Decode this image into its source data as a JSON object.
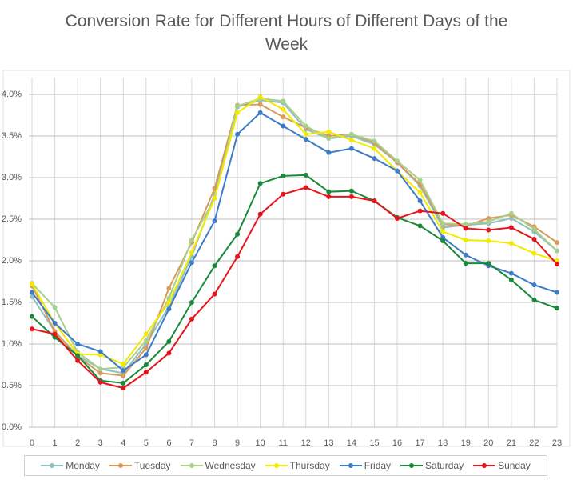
{
  "chart_data": {
    "type": "line",
    "title": "Conversion Rate for Different Hours of Different Days of the Week",
    "categories": [
      "0",
      "1",
      "2",
      "3",
      "4",
      "5",
      "6",
      "7",
      "8",
      "9",
      "10",
      "11",
      "12",
      "13",
      "14",
      "15",
      "16",
      "17",
      "18",
      "19",
      "20",
      "21",
      "22",
      "23"
    ],
    "ylim": [
      0,
      4.2
    ],
    "yticks": [
      {
        "value": 0,
        "label": "0.0%"
      },
      {
        "value": 0.5,
        "label": "0.5%"
      },
      {
        "value": 1,
        "label": "1.0%"
      },
      {
        "value": 1.5,
        "label": "1.5%"
      },
      {
        "value": 2,
        "label": "2.0%"
      },
      {
        "value": 2.5,
        "label": "2.5%"
      },
      {
        "value": 3,
        "label": "3.0%"
      },
      {
        "value": 3.5,
        "label": "3.5%"
      },
      {
        "value": 4,
        "label": "4.0%"
      }
    ],
    "grid": true,
    "legend": "bottom",
    "series": [
      {
        "name": "Monday",
        "color": "#8fbfc0",
        "values": [
          1.57,
          1.15,
          0.86,
          0.7,
          0.65,
          1.0,
          1.45,
          2.05,
          2.8,
          3.85,
          3.93,
          3.9,
          3.58,
          3.47,
          3.5,
          3.4,
          3.18,
          2.9,
          2.4,
          2.43,
          2.45,
          2.51,
          2.35,
          2.12
        ]
      },
      {
        "name": "Tuesday",
        "color": "#d99a5a",
        "values": [
          1.7,
          1.15,
          0.85,
          0.65,
          0.62,
          0.95,
          1.67,
          2.22,
          2.87,
          3.87,
          3.88,
          3.73,
          3.6,
          3.5,
          3.52,
          3.42,
          3.18,
          2.92,
          2.44,
          2.42,
          2.51,
          2.55,
          2.41,
          2.22
        ]
      },
      {
        "name": "Wednesday",
        "color": "#a9d18e",
        "values": [
          1.73,
          1.44,
          0.9,
          0.7,
          0.72,
          1.04,
          1.55,
          2.25,
          2.75,
          3.86,
          3.95,
          3.92,
          3.62,
          3.47,
          3.52,
          3.44,
          3.2,
          2.97,
          2.45,
          2.44,
          2.47,
          2.57,
          2.38,
          2.12
        ]
      },
      {
        "name": "Thursday",
        "color": "#f2ea00",
        "values": [
          1.72,
          1.25,
          0.88,
          0.87,
          0.76,
          1.12,
          1.5,
          2.1,
          2.75,
          3.78,
          3.97,
          3.82,
          3.52,
          3.55,
          3.45,
          3.35,
          3.08,
          2.82,
          2.35,
          2.25,
          2.24,
          2.21,
          2.09,
          2.0
        ]
      },
      {
        "name": "Friday",
        "color": "#3d7cc9",
        "values": [
          1.62,
          1.25,
          1.0,
          0.91,
          0.68,
          0.87,
          1.42,
          1.98,
          2.48,
          3.52,
          3.78,
          3.62,
          3.46,
          3.3,
          3.35,
          3.23,
          3.08,
          2.72,
          2.28,
          2.07,
          1.94,
          1.85,
          1.71,
          1.62
        ]
      },
      {
        "name": "Saturday",
        "color": "#1a8a3a",
        "values": [
          1.33,
          1.08,
          0.86,
          0.56,
          0.53,
          0.75,
          1.03,
          1.5,
          1.94,
          2.32,
          2.93,
          3.02,
          3.03,
          2.83,
          2.84,
          2.72,
          2.52,
          2.42,
          2.24,
          1.97,
          1.97,
          1.77,
          1.53,
          1.43
        ]
      },
      {
        "name": "Sunday",
        "color": "#e8141c",
        "values": [
          1.18,
          1.12,
          0.8,
          0.54,
          0.47,
          0.66,
          0.89,
          1.3,
          1.6,
          2.05,
          2.56,
          2.8,
          2.88,
          2.77,
          2.77,
          2.72,
          2.51,
          2.6,
          2.57,
          2.39,
          2.37,
          2.4,
          2.26,
          1.96
        ]
      }
    ]
  }
}
